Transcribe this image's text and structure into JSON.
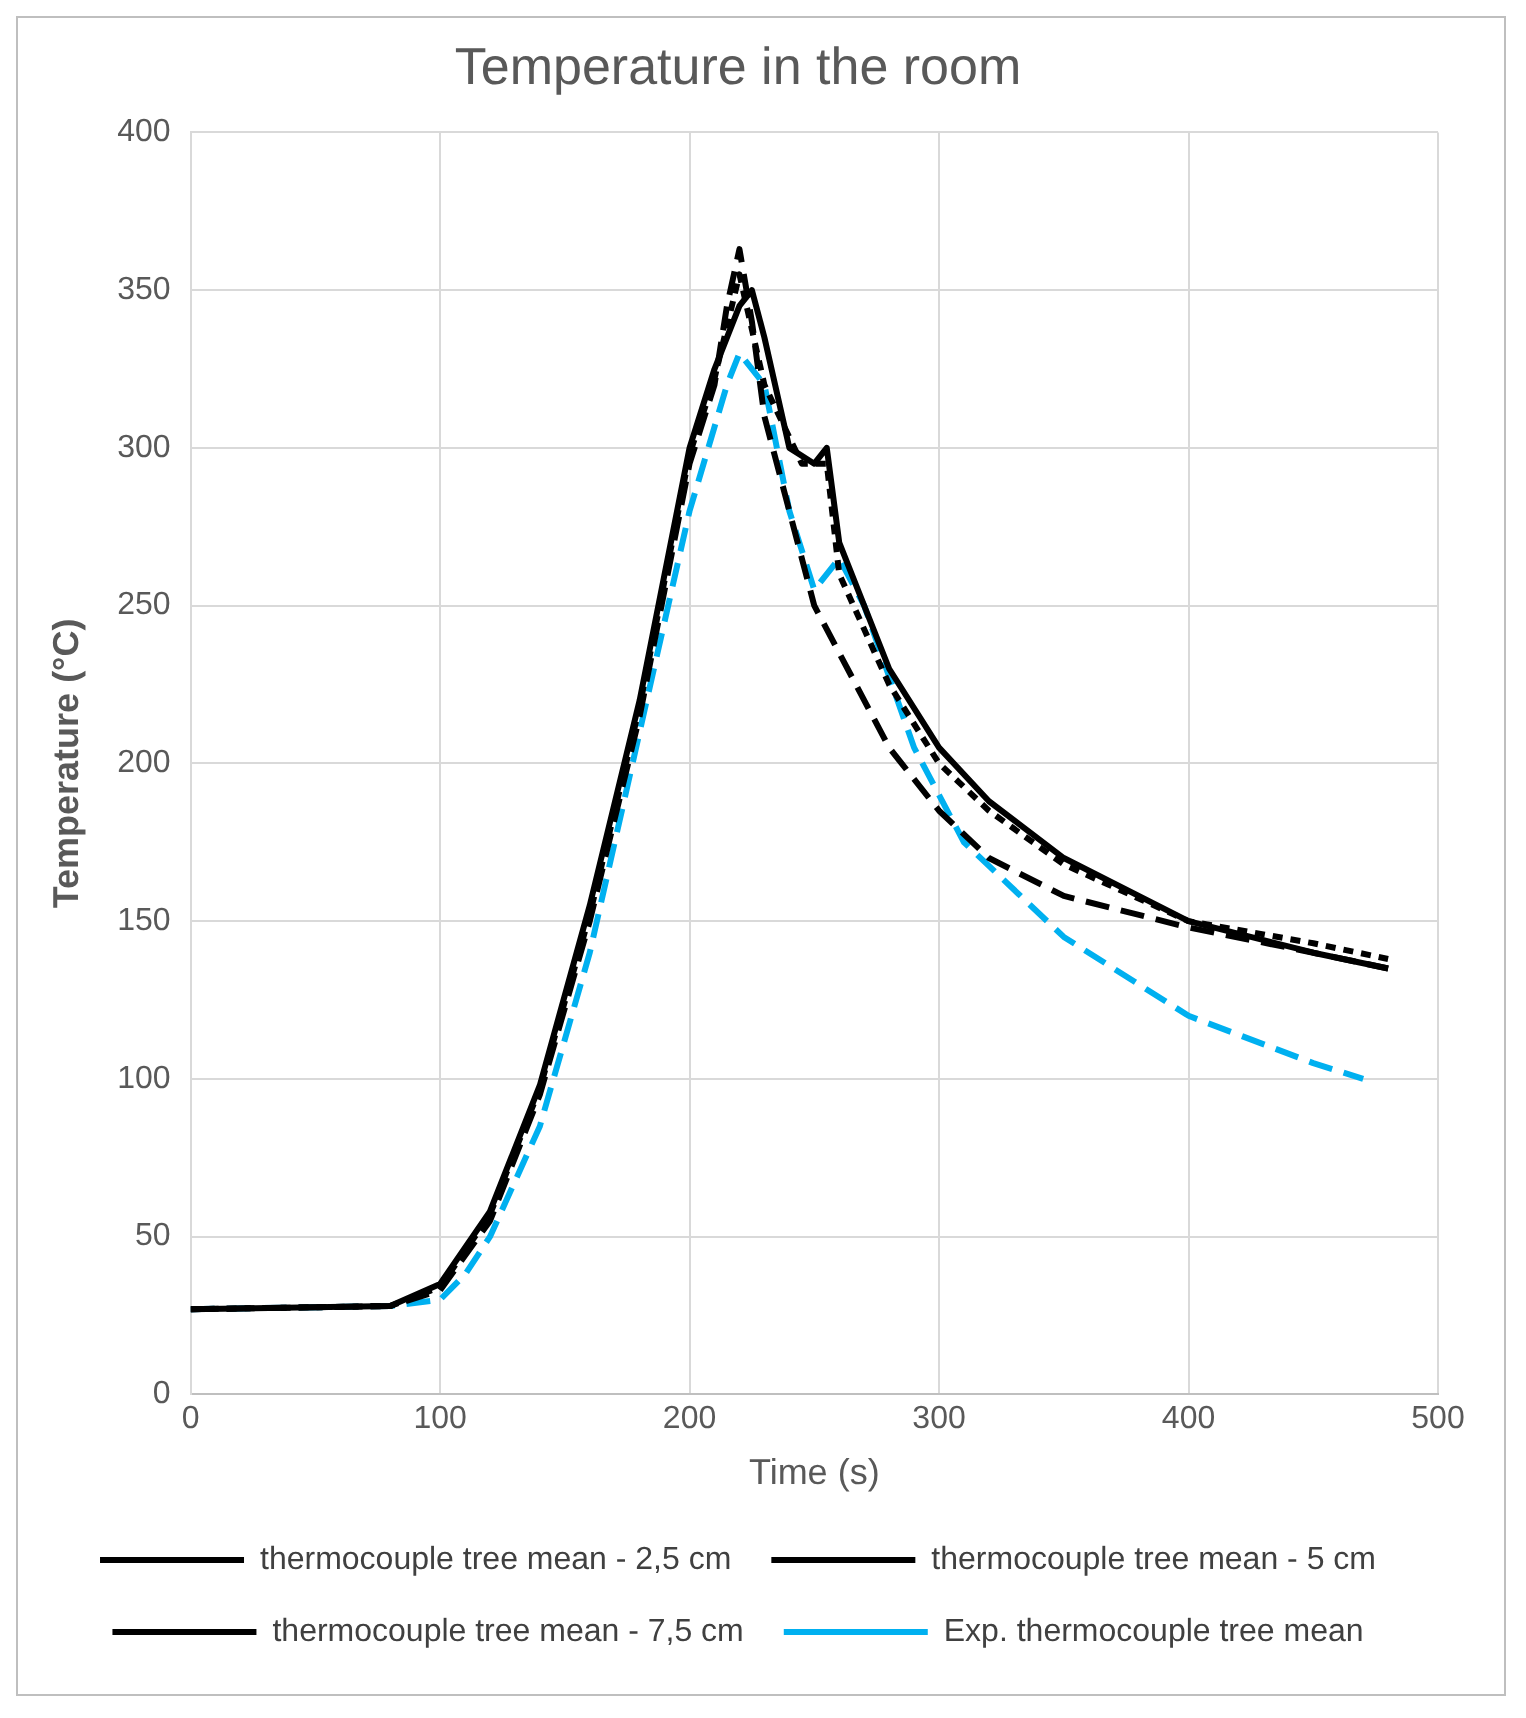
{
  "chart_data": {
    "type": "line",
    "title": "Temperature in the room",
    "xlabel": "Time (s)",
    "ylabel": "Temperature (°C)",
    "xlim": [
      0,
      500
    ],
    "xticks": [
      0,
      100,
      200,
      300,
      400,
      500
    ],
    "ylim": [
      0,
      400
    ],
    "yticks": [
      0,
      50,
      100,
      150,
      200,
      250,
      300,
      350,
      400
    ],
    "grid": true,
    "legend": "bottom",
    "marker": "none",
    "series": [
      {
        "name": "thermocouple tree mean - 2,5 cm",
        "color": "#000000",
        "line_style": "dashed",
        "x": [
          0,
          80,
          100,
          120,
          140,
          160,
          180,
          190,
          200,
          210,
          215,
          220,
          225,
          230,
          240,
          250,
          260,
          280,
          300,
          320,
          350,
          400,
          450,
          480
        ],
        "values": [
          27,
          28,
          33,
          55,
          95,
          150,
          215,
          255,
          295,
          320,
          345,
          363,
          340,
          310,
          280,
          250,
          235,
          205,
          185,
          170,
          158,
          148,
          140,
          135
        ]
      },
      {
        "name": "thermocouple tree mean - 5 cm",
        "color": "#000000",
        "line_style": "solid",
        "x": [
          0,
          80,
          100,
          120,
          140,
          160,
          180,
          200,
          210,
          220,
          225,
          230,
          240,
          250,
          255,
          260,
          280,
          300,
          320,
          350,
          400,
          450,
          480
        ],
        "values": [
          27,
          28,
          35,
          58,
          98,
          155,
          220,
          300,
          325,
          345,
          350,
          335,
          300,
          295,
          300,
          270,
          230,
          205,
          188,
          170,
          150,
          140,
          135
        ]
      },
      {
        "name": "thermocouple tree mean - 7,5 cm",
        "color": "#000000",
        "line_style": "dotted",
        "x": [
          0,
          80,
          100,
          120,
          140,
          160,
          180,
          200,
          210,
          220,
          230,
          245,
          255,
          260,
          280,
          300,
          320,
          350,
          400,
          450,
          480
        ],
        "values": [
          27,
          28,
          34,
          57,
          97,
          152,
          218,
          298,
          322,
          355,
          320,
          295,
          295,
          260,
          225,
          200,
          185,
          168,
          150,
          143,
          138
        ]
      },
      {
        "name": "Exp. thermocouple tree mean",
        "color": "#00b0f0",
        "line_style": "dashed",
        "x": [
          0,
          80,
          100,
          110,
          120,
          140,
          160,
          180,
          200,
          215,
          220,
          230,
          240,
          250,
          260,
          270,
          290,
          310,
          350,
          400,
          450,
          470
        ],
        "values": [
          27,
          28,
          30,
          38,
          50,
          85,
          140,
          210,
          280,
          320,
          330,
          320,
          280,
          255,
          265,
          250,
          205,
          175,
          145,
          120,
          105,
          100
        ]
      }
    ]
  }
}
